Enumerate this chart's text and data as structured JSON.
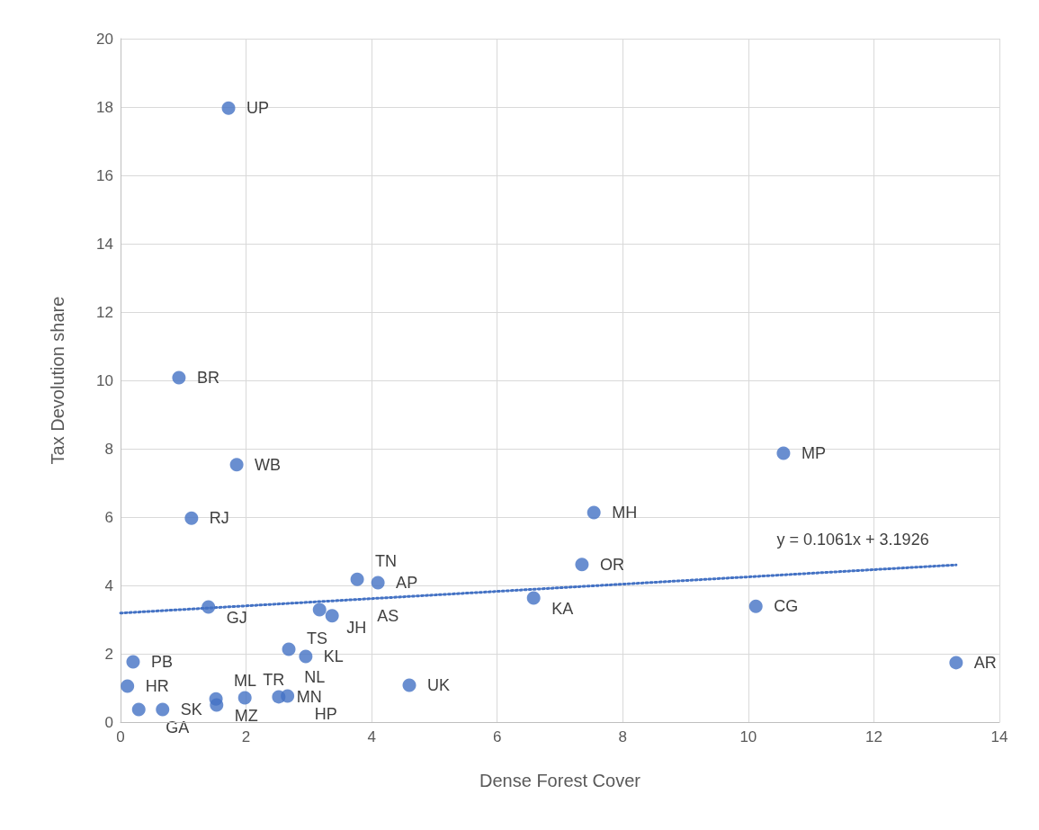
{
  "chart_data": {
    "type": "scatter",
    "xlabel": "Dense Forest Cover",
    "ylabel": "Tax Devolution share",
    "xlim": [
      0,
      14
    ],
    "xticks": [
      0,
      2,
      4,
      6,
      8,
      10,
      12,
      14
    ],
    "ylim": [
      0,
      20
    ],
    "yticks": [
      0,
      2,
      4,
      6,
      8,
      10,
      12,
      14,
      16,
      18,
      20
    ],
    "grid": true,
    "marker": "circle",
    "series": [
      {
        "color": "#4472c4",
        "x": [
          1.72,
          0.93,
          1.85,
          1.13,
          1.4,
          0.2,
          0.11,
          0.29,
          0.67,
          1.52,
          1.53,
          1.98,
          2.52,
          2.64,
          2.66,
          2.68,
          2.95,
          3.17,
          3.37,
          3.77,
          4.1,
          4.6,
          6.58,
          7.35,
          7.54,
          10.12,
          10.56,
          13.31
        ],
        "values": [
          17.97,
          10.08,
          7.53,
          5.97,
          3.37,
          1.76,
          1.05,
          0.37,
          0.37,
          0.68,
          0.5,
          0.71,
          0.74,
          null,
          0.76,
          2.13,
          1.92,
          3.29,
          3.11,
          4.18,
          4.08,
          1.08,
          3.63,
          4.61,
          6.13,
          3.39,
          7.87,
          1.74
        ]
      },
      {
        "type": "line",
        "color": "#4472c4",
        "line_style": "dotted",
        "marker": "none",
        "x": [
          0,
          13.31
        ],
        "values": [
          3.19,
          4.6
        ]
      }
    ],
    "annotations": [
      {
        "text": "UP",
        "x": 1.72,
        "y": 17.97
      },
      {
        "text": "BR",
        "x": 0.93,
        "y": 10.08
      },
      {
        "text": "WB",
        "x": 1.85,
        "y": 7.53
      },
      {
        "text": "RJ",
        "x": 1.13,
        "y": 5.97
      },
      {
        "text": "GJ",
        "x": 1.4,
        "y": 3.37
      },
      {
        "text": "PB",
        "x": 0.2,
        "y": 1.76
      },
      {
        "text": "HR",
        "x": 0.11,
        "y": 1.05
      },
      {
        "text": "GA",
        "x": 0.29,
        "y": 0.37
      },
      {
        "text": "SK",
        "x": 0.67,
        "y": 0.37
      },
      {
        "text": "ML",
        "x": 1.52,
        "y": 0.68
      },
      {
        "text": "MZ",
        "x": 1.53,
        "y": 0.5
      },
      {
        "text": "TR",
        "x": 1.98,
        "y": 0.71
      },
      {
        "text": "MN",
        "x": 2.52,
        "y": 0.74
      },
      {
        "text": "NL",
        "x": 2.64,
        "y": 0.79
      },
      {
        "text": "HP",
        "x": 2.66,
        "y": 0.76
      },
      {
        "text": "TS",
        "x": 2.68,
        "y": 2.13
      },
      {
        "text": "KL",
        "x": 2.95,
        "y": 1.92
      },
      {
        "text": "JH",
        "x": 3.17,
        "y": 3.29
      },
      {
        "text": "AS",
        "x": 3.37,
        "y": 3.11
      },
      {
        "text": "TN",
        "x": 3.77,
        "y": 4.18
      },
      {
        "text": "AP",
        "x": 4.1,
        "y": 4.08
      },
      {
        "text": "UK",
        "x": 4.6,
        "y": 1.08
      },
      {
        "text": "KA",
        "x": 6.58,
        "y": 3.63
      },
      {
        "text": "OR",
        "x": 7.35,
        "y": 4.61
      },
      {
        "text": "MH",
        "x": 7.54,
        "y": 6.13
      },
      {
        "text": "CG",
        "x": 10.12,
        "y": 3.39
      },
      {
        "text": "MP",
        "x": 10.56,
        "y": 7.87
      },
      {
        "text": "AR",
        "x": 13.31,
        "y": 1.74
      },
      {
        "text": "y = 0.1061x + 3.1926",
        "x": 11.6,
        "y": 4.42
      }
    ]
  }
}
